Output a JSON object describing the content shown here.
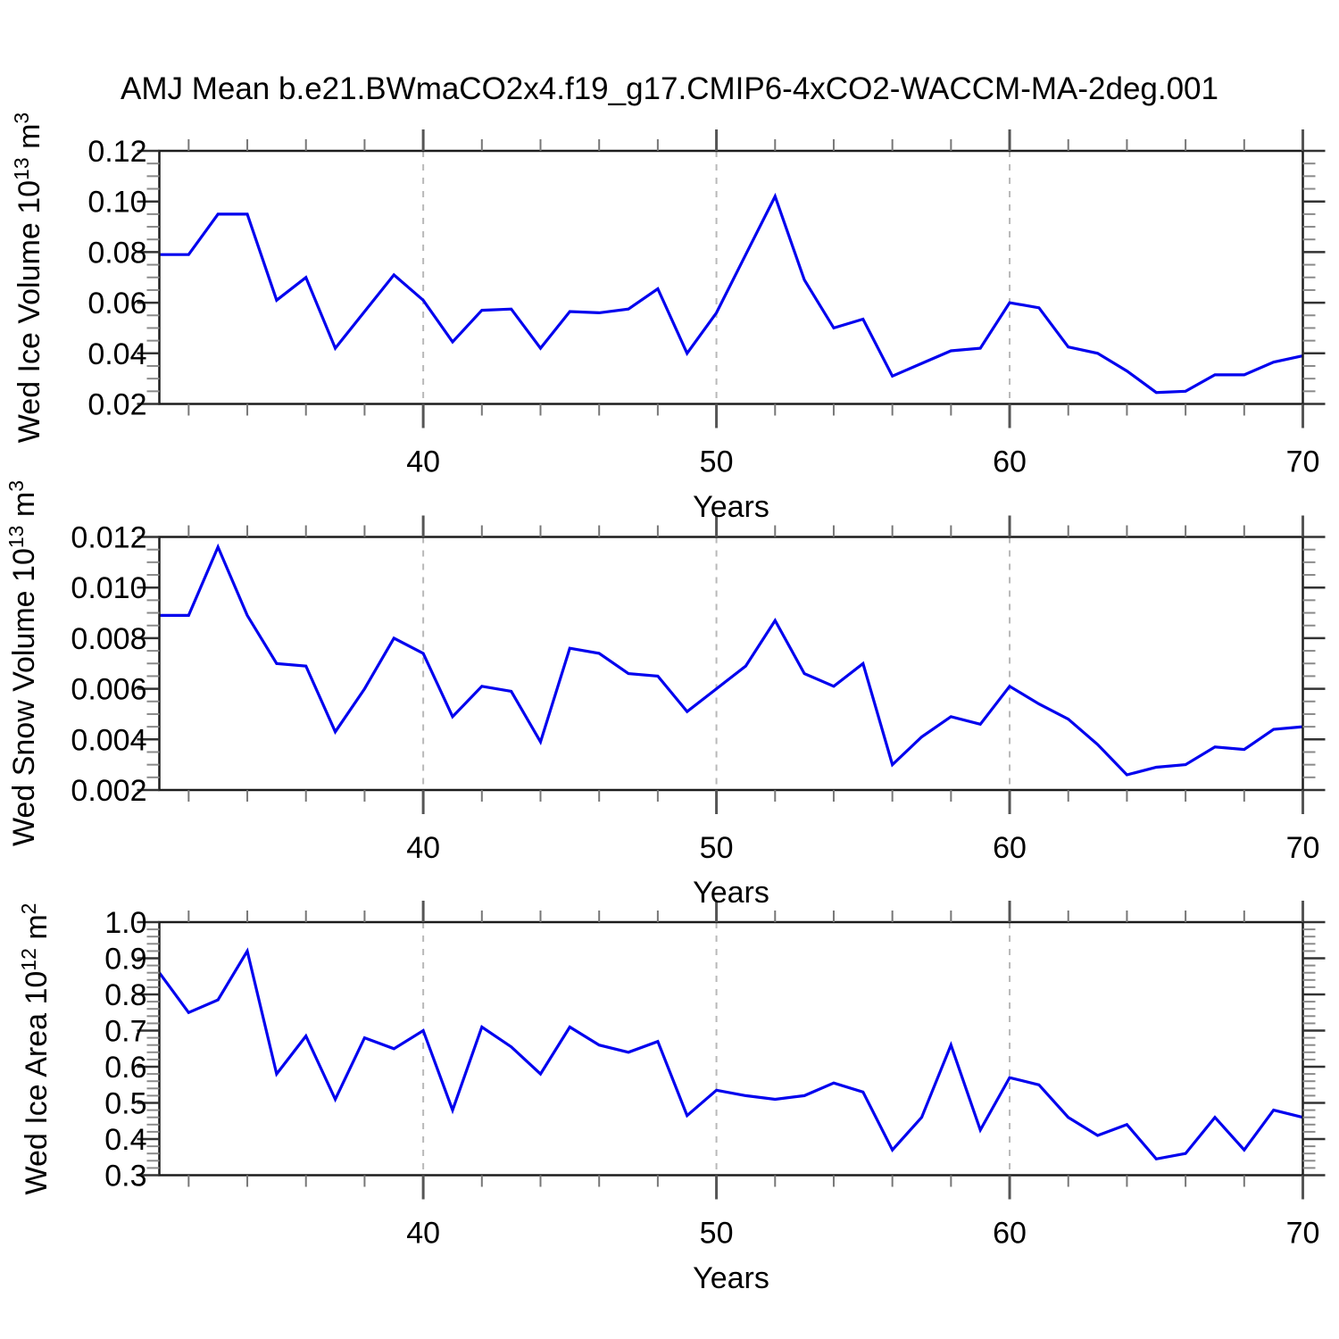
{
  "title": "AMJ Mean b.e21.BWmaCO2x4.f19_g17.CMIP6-4xCO2-WACCM-MA-2deg.001",
  "xlabel": "Years",
  "colors": {
    "line": "#0000ee",
    "grid": "#b9b9b9",
    "frame": "#1c1c1c",
    "tick_major": "#333333",
    "tick_minor": "#8a8a8a",
    "xtick_major": "#555555",
    "xtick_minor": "#777777",
    "text": "#000000",
    "background": "#ffffff"
  },
  "x_axis": {
    "range": [
      31,
      70
    ],
    "major_ticks": [
      40,
      50,
      60,
      70
    ],
    "major_labels": [
      "40",
      "50",
      "60",
      "70"
    ],
    "minor_step": 2,
    "gridlines": [
      40,
      50,
      60
    ]
  },
  "chart_data": [
    {
      "type": "line",
      "name": "wed-ice-volume",
      "ylabel": {
        "pre": "Wed Ice Volume 10",
        "exp": "13",
        "mid": " m",
        "exp2": "3"
      },
      "xlabel": "Years",
      "ylim": [
        0.02,
        0.12
      ],
      "yticks": [
        0.02,
        0.04,
        0.06,
        0.08,
        0.1,
        0.12
      ],
      "ytick_labels": [
        "0.02",
        "0.04",
        "0.06",
        "0.08",
        "0.10",
        "0.12"
      ],
      "y_minor_step": 0.005,
      "x_start": 31,
      "x_step": 1,
      "values": [
        0.079,
        0.079,
        0.095,
        0.095,
        0.061,
        0.07,
        0.042,
        0.0565,
        0.071,
        0.061,
        0.0445,
        0.057,
        0.0575,
        0.042,
        0.0565,
        0.056,
        0.0575,
        0.0655,
        0.04,
        0.056,
        0.079,
        0.102,
        0.069,
        0.05,
        0.0535,
        0.031,
        0.036,
        0.041,
        0.042,
        0.06,
        0.058,
        0.0425,
        0.04,
        0.033,
        0.0245,
        0.025,
        0.0315,
        0.0315,
        0.0365,
        0.039
      ]
    },
    {
      "type": "line",
      "name": "wed-snow-volume",
      "ylabel": {
        "pre": "Wed Snow Volume 10",
        "exp": "13",
        "mid": " m",
        "exp2": "3"
      },
      "xlabel": "Years",
      "ylim": [
        0.002,
        0.012
      ],
      "yticks": [
        0.002,
        0.004,
        0.006,
        0.008,
        0.01,
        0.012
      ],
      "ytick_labels": [
        "0.002",
        "0.004",
        "0.006",
        "0.008",
        "0.010",
        "0.012"
      ],
      "y_minor_step": 0.0005,
      "x_start": 31,
      "x_step": 1,
      "values": [
        0.0089,
        0.0089,
        0.0116,
        0.0089,
        0.007,
        0.0069,
        0.0043,
        0.006,
        0.008,
        0.0074,
        0.0049,
        0.0061,
        0.0059,
        0.0039,
        0.0076,
        0.0074,
        0.0066,
        0.0065,
        0.0051,
        0.006,
        0.0069,
        0.0087,
        0.0066,
        0.0061,
        0.007,
        0.003,
        0.0041,
        0.0049,
        0.0046,
        0.0061,
        0.0054,
        0.0048,
        0.0038,
        0.0026,
        0.0029,
        0.003,
        0.0037,
        0.0036,
        0.0044,
        0.0045
      ]
    },
    {
      "type": "line",
      "name": "wed-ice-area",
      "ylabel": {
        "pre": "Wed Ice Area 10",
        "exp": "12",
        "mid": " m",
        "exp2": "2"
      },
      "xlabel": "Years",
      "ylim": [
        0.3,
        1.0
      ],
      "yticks": [
        0.3,
        0.4,
        0.5,
        0.6,
        0.7,
        0.8,
        0.9,
        1.0
      ],
      "ytick_labels": [
        "0.3",
        "0.4",
        "0.5",
        "0.6",
        "0.7",
        "0.8",
        "0.9",
        "1.0"
      ],
      "y_minor_step": 0.02,
      "x_start": 31,
      "x_step": 1,
      "values": [
        0.86,
        0.75,
        0.785,
        0.92,
        0.58,
        0.685,
        0.51,
        0.68,
        0.65,
        0.7,
        0.48,
        0.71,
        0.655,
        0.58,
        0.71,
        0.66,
        0.64,
        0.67,
        0.465,
        0.535,
        0.52,
        0.51,
        0.52,
        0.555,
        0.53,
        0.37,
        0.46,
        0.66,
        0.425,
        0.57,
        0.55,
        0.46,
        0.41,
        0.44,
        0.345,
        0.36,
        0.46,
        0.37,
        0.48,
        0.46
      ]
    }
  ]
}
